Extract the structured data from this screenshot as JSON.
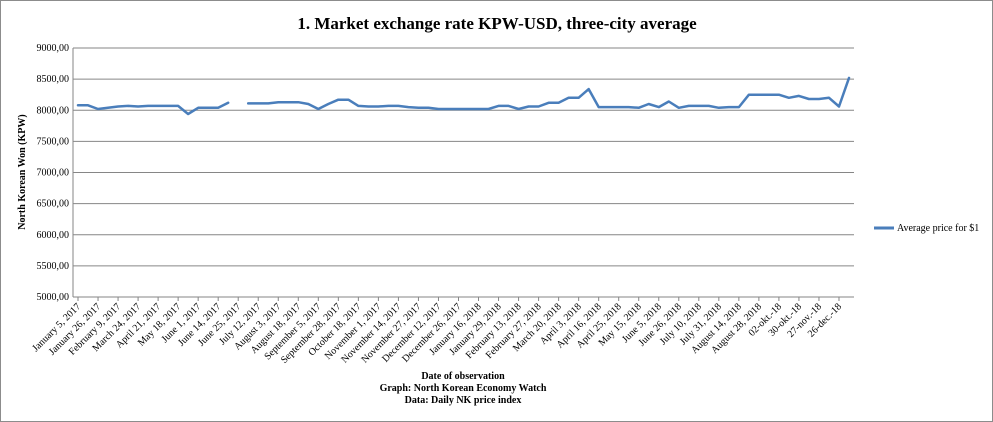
{
  "chart_data": {
    "type": "line",
    "title": "1. Market exchange rate KPW-USD, three-city average",
    "ylabel": "North Korean Won (KPW)",
    "xlabel": "Date of observation",
    "source_lines": [
      "Graph: North Korean Economy Watch",
      "Data: Daily NK price index"
    ],
    "ylim": [
      5000,
      9000
    ],
    "yticks": [
      "5000,00",
      "5500,00",
      "6000,00",
      "6500,00",
      "7000,00",
      "7500,00",
      "8000,00",
      "8500,00",
      "9000,00"
    ],
    "xtick_labels": [
      "January 5, 2017",
      "January 26, 2017",
      "February 9, 2017",
      "March 24, 2017",
      "April 21, 2017",
      "May 18, 2017",
      "June 1, 2017",
      "June 14, 2017",
      "June 25, 2017",
      "July 12, 2017",
      "August 3, 2017",
      "August 18, 2017",
      "September 5, 2017",
      "September 28, 2017",
      "October 18, 2017",
      "November 1, 2017",
      "November 14, 2017",
      "November 27, 2017",
      "December 12, 2017",
      "December 26, 2017",
      "January 16, 2018",
      "January 29, 2018",
      "February 13, 2018",
      "February 27, 2018",
      "March 20, 2018",
      "April 3, 2018",
      "April 16, 2018",
      "April 25, 2018",
      "May 15, 2018",
      "June 5, 2018",
      "June 26, 2018",
      "July 10, 2018",
      "July 31, 2018",
      "August 14, 2018",
      "August 28, 2018",
      "02-okt.-18",
      "30-okt.-18",
      "27-nov.-18",
      "26-dec.-18"
    ],
    "series": [
      {
        "name": "Average price for $1",
        "color": "#4a7ebb",
        "values": [
          8080,
          8080,
          8020,
          8040,
          8060,
          8070,
          8060,
          8070,
          8070,
          8070,
          8070,
          7940,
          8040,
          8040,
          8040,
          8120,
          null,
          8110,
          8110,
          8110,
          8130,
          8130,
          8130,
          8100,
          8020,
          8100,
          8170,
          8170,
          8070,
          8060,
          8060,
          8070,
          8070,
          8050,
          8040,
          8040,
          8020,
          8020,
          8020,
          8020,
          8020,
          8020,
          8070,
          8070,
          8020,
          8060,
          8060,
          8120,
          8120,
          8200,
          8200,
          8340,
          8050,
          8050,
          8050,
          8050,
          8040,
          8100,
          8050,
          8140,
          8040,
          8070,
          8070,
          8070,
          8040,
          8050,
          8050,
          8250,
          8250,
          8250,
          8250,
          8200,
          8230,
          8180,
          8180,
          8200,
          8060,
          8520
        ]
      }
    ],
    "legend_position": "right",
    "grid": true
  }
}
